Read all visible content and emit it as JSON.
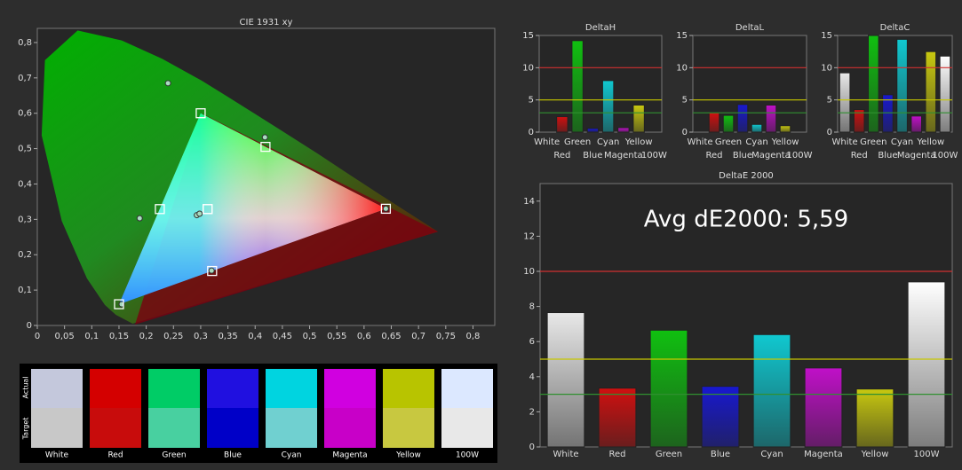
{
  "chart_data": [
    {
      "type": "scatter",
      "title": "CIE 1931 xy",
      "xlim": [
        0,
        0.84
      ],
      "ylim": [
        0,
        0.84
      ],
      "xticks": [
        0,
        {
          "value": 0.05,
          "label": "0,05"
        },
        {
          "value": 0.1,
          "label": "0,1"
        },
        {
          "value": 0.15,
          "label": "0,15"
        },
        {
          "value": 0.2,
          "label": "0,2"
        },
        {
          "value": 0.25,
          "label": "0,25"
        },
        {
          "value": 0.3,
          "label": "0,3"
        },
        {
          "value": 0.35,
          "label": "0,35"
        },
        {
          "value": 0.4,
          "label": "0,4"
        },
        {
          "value": 0.45,
          "label": "0,45"
        },
        {
          "value": 0.5,
          "label": "0,5"
        },
        {
          "value": 0.55,
          "label": "0,55"
        },
        {
          "value": 0.6,
          "label": "0,6"
        },
        {
          "value": 0.65,
          "label": "0,65"
        },
        {
          "value": 0.7,
          "label": "0,7"
        },
        {
          "value": 0.75,
          "label": "0,75"
        },
        {
          "value": 0.8,
          "label": "0,8"
        }
      ],
      "yticks": [
        0,
        {
          "value": 0.1,
          "label": "0,1"
        },
        {
          "value": 0.2,
          "label": "0,2"
        },
        {
          "value": 0.3,
          "label": "0,3"
        },
        {
          "value": 0.4,
          "label": "0,4"
        },
        {
          "value": 0.5,
          "label": "0,5"
        },
        {
          "value": 0.6,
          "label": "0,6"
        },
        {
          "value": 0.7,
          "label": "0,7"
        },
        {
          "value": 0.8,
          "label": "0,8"
        }
      ],
      "series": [
        {
          "name": "Actual",
          "marker": "circle",
          "color": "#a8dcc0",
          "x": [
            0.293,
            0.64,
            0.24,
            0.155,
            0.188,
            0.32,
            0.418,
            0.298
          ],
          "y": [
            0.312,
            0.33,
            0.685,
            0.06,
            0.303,
            0.155,
            0.532,
            0.316
          ]
        },
        {
          "name": "Target",
          "marker": "square",
          "color": "#ffffff",
          "x": [
            0.3127,
            0.64,
            0.3,
            0.15,
            0.225,
            0.321,
            0.419,
            0.3127
          ],
          "y": [
            0.329,
            0.33,
            0.6,
            0.06,
            0.329,
            0.154,
            0.505,
            0.329
          ]
        }
      ]
    },
    {
      "type": "bar",
      "title": "DeltaH",
      "categories": [
        "White",
        "Red",
        "Green",
        "Blue",
        "Cyan",
        "Magenta",
        "Yellow",
        "100W"
      ],
      "colors": [
        "#e8e8e8",
        "#d01010",
        "#10c010",
        "#1818d0",
        "#10c8d0",
        "#c010c8",
        "#c8c810",
        "#ffffff"
      ],
      "values": [
        0,
        2.4,
        14.2,
        0.6,
        8.0,
        0.7,
        4.2,
        0
      ],
      "ylim": [
        0,
        15
      ],
      "yticks": [
        0,
        5,
        10,
        15
      ],
      "reference_lines": [
        {
          "value": 10,
          "color": "#d03030"
        },
        {
          "value": 5,
          "color": "#c8c800"
        },
        {
          "value": 3,
          "color": "#309030"
        }
      ]
    },
    {
      "type": "bar",
      "title": "DeltaL",
      "categories": [
        "White",
        "Red",
        "Green",
        "Blue",
        "Cyan",
        "Magenta",
        "Yellow",
        "100W"
      ],
      "colors": [
        "#e8e8e8",
        "#d01010",
        "#10c010",
        "#1818d0",
        "#10c8d0",
        "#c010c8",
        "#c8c810",
        "#ffffff"
      ],
      "values": [
        0,
        3.0,
        2.6,
        4.3,
        1.2,
        4.2,
        1.0,
        0
      ],
      "ylim": [
        0,
        15
      ],
      "yticks": [
        0,
        5,
        10,
        15
      ],
      "reference_lines": [
        {
          "value": 10,
          "color": "#d03030"
        },
        {
          "value": 5,
          "color": "#c8c800"
        },
        {
          "value": 3,
          "color": "#309030"
        }
      ]
    },
    {
      "type": "bar",
      "title": "DeltaC",
      "categories": [
        "White",
        "Red",
        "Green",
        "Blue",
        "Cyan",
        "Magenta",
        "Yellow",
        "100W"
      ],
      "colors": [
        "#e8e8e8",
        "#d01010",
        "#10c010",
        "#1818d0",
        "#10c8d0",
        "#c010c8",
        "#c8c810",
        "#ffffff"
      ],
      "values": [
        9.2,
        3.5,
        15,
        5.8,
        14.4,
        2.5,
        12.5,
        11.8
      ],
      "ylim": [
        0,
        15
      ],
      "yticks": [
        0,
        5,
        10,
        15
      ],
      "reference_lines": [
        {
          "value": 10,
          "color": "#d03030"
        },
        {
          "value": 5,
          "color": "#c8c800"
        },
        {
          "value": 3,
          "color": "#309030"
        }
      ]
    },
    {
      "type": "bar",
      "title": "DeltaE 2000",
      "annotation": "Avg dE2000: 5,59",
      "categories": [
        "White",
        "Red",
        "Green",
        "Blue",
        "Cyan",
        "Magenta",
        "Yellow",
        "100W"
      ],
      "colors": [
        "#e8e8e8",
        "#d01010",
        "#10c010",
        "#1818d0",
        "#10c8d0",
        "#c010c8",
        "#c8c810",
        "#ffffff"
      ],
      "values": [
        7.65,
        3.35,
        6.65,
        3.45,
        6.4,
        4.5,
        3.3,
        9.4
      ],
      "ylim": [
        0,
        15
      ],
      "yticks": [
        0,
        2,
        4,
        6,
        8,
        10,
        12,
        14
      ],
      "reference_lines": [
        {
          "value": 10,
          "color": "#d03030"
        },
        {
          "value": 5,
          "color": "#c8c800"
        },
        {
          "value": 3,
          "color": "#309030"
        }
      ]
    }
  ],
  "swatches": {
    "row_labels": [
      "Actual",
      "Target"
    ],
    "names": [
      "White",
      "Red",
      "Green",
      "Blue",
      "Cyan",
      "Magenta",
      "Yellow",
      "100W"
    ],
    "actual": [
      "#c4c8dc",
      "#d40000",
      "#00cc66",
      "#2010e0",
      "#00d4e0",
      "#d000e0",
      "#b8c400",
      "#dce8ff"
    ],
    "target": [
      "#c8c8c8",
      "#c80c0c",
      "#48d0a0",
      "#0000c8",
      "#70d0d0",
      "#c800c8",
      "#c8c840",
      "#e8e8e8"
    ]
  }
}
